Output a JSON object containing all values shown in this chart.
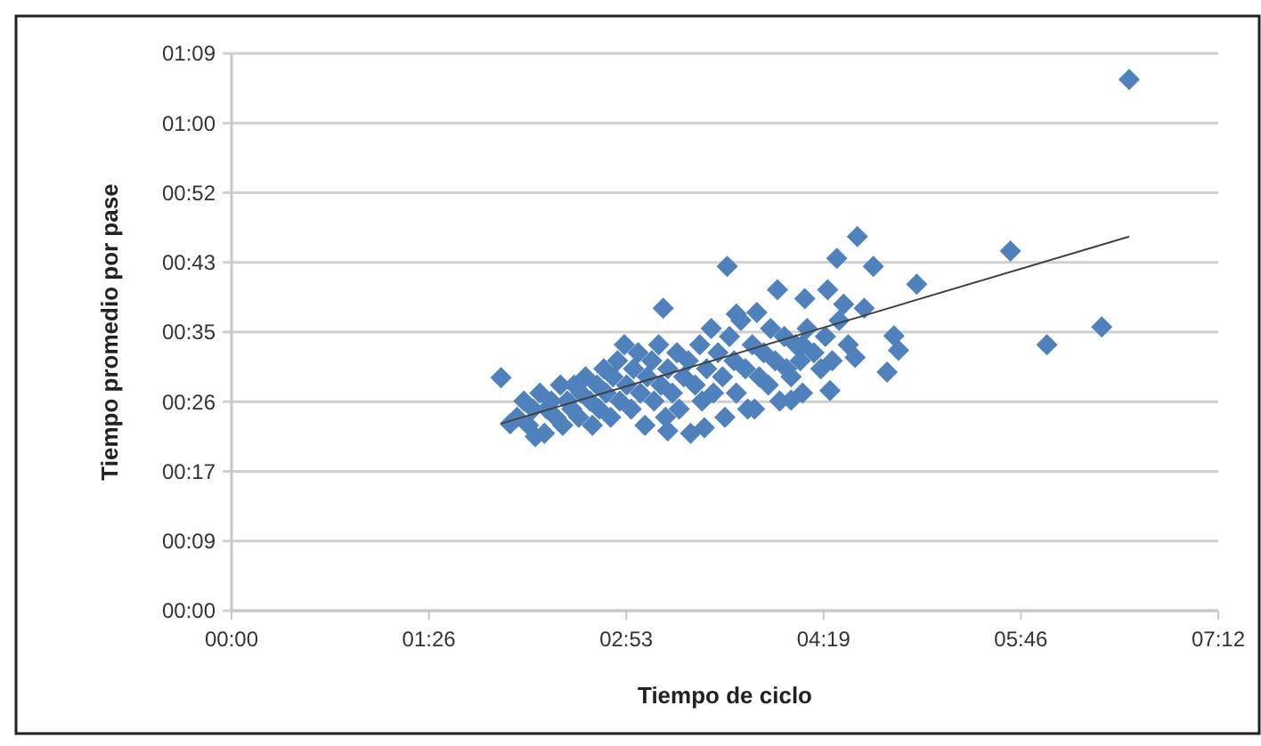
{
  "chart_data": {
    "type": "scatter",
    "xlabel": "Tiempo de ciclo",
    "ylabel": "Tiempo promedio por pase",
    "xlim": [
      0,
      432
    ],
    "ylim": [
      0,
      69.12
    ],
    "xticks": [
      {
        "value": 0,
        "label": "00:00"
      },
      {
        "value": 86.4,
        "label": "01:26"
      },
      {
        "value": 172.8,
        "label": "02:53"
      },
      {
        "value": 259.2,
        "label": "04:19"
      },
      {
        "value": 345.6,
        "label": "05:46"
      },
      {
        "value": 432,
        "label": "07:12"
      }
    ],
    "yticks": [
      {
        "value": 0,
        "label": "00:00"
      },
      {
        "value": 8.64,
        "label": "00:09"
      },
      {
        "value": 17.28,
        "label": "00:17"
      },
      {
        "value": 25.92,
        "label": "00:26"
      },
      {
        "value": 34.56,
        "label": "00:35"
      },
      {
        "value": 43.2,
        "label": "00:43"
      },
      {
        "value": 51.84,
        "label": "00:52"
      },
      {
        "value": 60.48,
        "label": "01:00"
      },
      {
        "value": 69.12,
        "label": "01:09"
      }
    ],
    "grid": "y",
    "series": [
      {
        "color": "#4f81bd",
        "marker": "diamond",
        "x": [
          118,
          122,
          125,
          128,
          130,
          132,
          133,
          135,
          137,
          138,
          140,
          142,
          144,
          145,
          147,
          149,
          150,
          152,
          153,
          155,
          157,
          158,
          160,
          161,
          163,
          164,
          166,
          167,
          169,
          170,
          172,
          173,
          175,
          176,
          178,
          179,
          181,
          182,
          184,
          185,
          187,
          188,
          190,
          191,
          193,
          195,
          196,
          198,
          200,
          201,
          203,
          205,
          206,
          208,
          210,
          211,
          213,
          215,
          216,
          218,
          220,
          221,
          223,
          225,
          226,
          228,
          230,
          231,
          233,
          235,
          236,
          238,
          240,
          242,
          243,
          245,
          247,
          249,
          250,
          252,
          255,
          258,
          260,
          263,
          266,
          268,
          270,
          189,
          207,
          191,
          217,
          221,
          229,
          239,
          245,
          251,
          250,
          261,
          262,
          265,
          273,
          274,
          277,
          281,
          287,
          290,
          292,
          300,
          341,
          357,
          381,
          393
        ],
        "values": [
          28.9,
          23.2,
          24,
          26,
          23,
          25,
          21.6,
          27,
          22,
          25,
          26,
          24,
          28,
          23,
          26,
          25,
          28,
          24,
          27,
          29,
          26,
          23,
          28,
          25,
          30,
          27,
          24,
          29,
          31,
          26,
          33,
          28,
          25,
          30,
          32,
          27,
          23,
          29,
          31,
          26,
          33,
          28,
          24,
          30,
          27,
          32,
          25,
          29,
          31,
          22,
          28,
          33,
          26,
          30,
          35,
          27,
          32,
          29,
          24,
          34,
          31,
          27,
          36,
          30,
          25,
          33,
          37,
          29,
          32,
          28,
          35,
          31,
          26,
          34,
          30,
          29,
          33,
          31,
          27,
          35,
          32,
          30,
          34,
          31,
          36,
          38,
          33,
          37.5,
          22.7,
          22.3,
          42.7,
          36.8,
          25,
          39.8,
          26.1,
          38.7,
          33,
          39.8,
          27.3,
          43.7,
          31.4,
          46.4,
          37.5,
          42.7,
          29.6,
          34.1,
          32.3,
          40.5,
          44.6,
          33,
          35.2,
          65.9
        ]
      },
      {
        "type": "line",
        "color": "#404040",
        "marker": "none",
        "x": [
          118,
          393
        ],
        "values": [
          23.2,
          46.4
        ]
      }
    ]
  }
}
